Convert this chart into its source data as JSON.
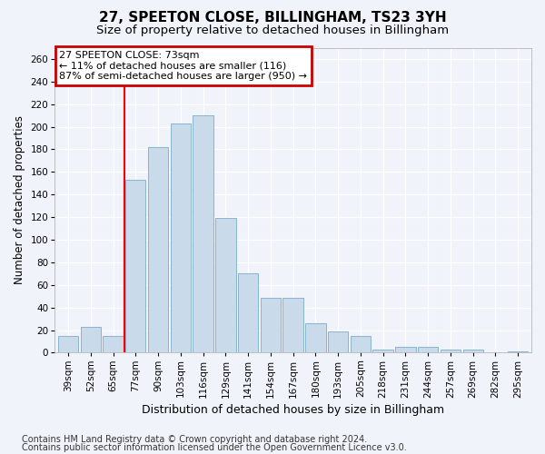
{
  "title1": "27, SPEETON CLOSE, BILLINGHAM, TS23 3YH",
  "title2": "Size of property relative to detached houses in Billingham",
  "xlabel": "Distribution of detached houses by size in Billingham",
  "ylabel": "Number of detached properties",
  "categories": [
    "39sqm",
    "52sqm",
    "65sqm",
    "77sqm",
    "90sqm",
    "103sqm",
    "116sqm",
    "129sqm",
    "141sqm",
    "154sqm",
    "167sqm",
    "180sqm",
    "193sqm",
    "205sqm",
    "218sqm",
    "231sqm",
    "244sqm",
    "257sqm",
    "269sqm",
    "282sqm",
    "295sqm"
  ],
  "values": [
    15,
    23,
    15,
    153,
    182,
    203,
    210,
    119,
    70,
    49,
    49,
    26,
    19,
    15,
    3,
    5,
    5,
    3,
    3,
    0,
    1
  ],
  "bar_color": "#c9daea",
  "bar_edge_color": "#8ab4cc",
  "red_line_x": 2.5,
  "annotation_text": "27 SPEETON CLOSE: 73sqm\n← 11% of detached houses are smaller (116)\n87% of semi-detached houses are larger (950) →",
  "annotation_box_color": "#ffffff",
  "annotation_box_edge": "#cc0000",
  "background_color": "#f0f4fa",
  "plot_bg_color": "#f0f4fa",
  "ylim": [
    0,
    270
  ],
  "yticks": [
    0,
    20,
    40,
    60,
    80,
    100,
    120,
    140,
    160,
    180,
    200,
    220,
    240,
    260
  ],
  "footer1": "Contains HM Land Registry data © Crown copyright and database right 2024.",
  "footer2": "Contains public sector information licensed under the Open Government Licence v3.0.",
  "title1_fontsize": 11,
  "title2_fontsize": 9.5,
  "xlabel_fontsize": 9,
  "ylabel_fontsize": 8.5,
  "tick_fontsize": 7.5,
  "footer_fontsize": 7,
  "ann_fontsize": 8
}
